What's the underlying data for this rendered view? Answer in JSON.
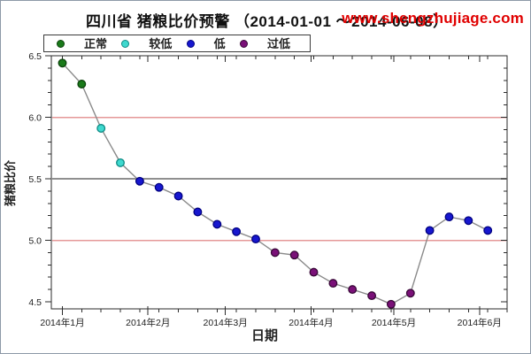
{
  "chart_data": {
    "type": "line",
    "title": "四川省 猪粮比价预警 （2014-01-01 ～2014-06-08）",
    "watermark": "www.shengzhujiage.com",
    "watermark_color": "#e00000",
    "xlabel": "日期",
    "ylabel": "猪粮比价",
    "x_range": [
      "2014-01-01",
      "2014-06-15"
    ],
    "ylim": [
      4.44,
      6.5
    ],
    "grid": false,
    "legend_position": "top",
    "legend": [
      {
        "label": "正常",
        "color": "#1a7a1a",
        "edge": "#0b430b",
        "band": ">=6.0"
      },
      {
        "label": "较低",
        "color": "#3fd9cf",
        "edge": "#0e8a84",
        "band": "5.5-6.0"
      },
      {
        "label": "低",
        "color": "#1717cf",
        "edge": "#000080",
        "band": "5.0-5.5"
      },
      {
        "label": "过低",
        "color": "#7a1078",
        "edge": "#380737",
        "band": "<5.0"
      }
    ],
    "thresholds": [
      {
        "value": 6.0,
        "color": "#e59898",
        "width": 1.5
      },
      {
        "value": 5.5,
        "color": "#8f8f8f",
        "width": 2
      },
      {
        "value": 5.0,
        "color": "#e59898",
        "width": 1.5
      }
    ],
    "y_ticks": [
      {
        "value": 6.5,
        "label": "6.5"
      },
      {
        "value": 6.0,
        "label": "6.0"
      },
      {
        "value": 5.5,
        "label": "5.5"
      },
      {
        "value": 5.0,
        "label": "5.0"
      },
      {
        "value": 4.5,
        "label": "4.5"
      }
    ],
    "y_minor_step": 0.1,
    "x_ticks": [
      {
        "label": "2014年1月",
        "date": "2014-01-05"
      },
      {
        "label": "2014年2月",
        "date": "2014-02-05"
      },
      {
        "label": "2014年3月",
        "date": "2014-03-05"
      },
      {
        "label": "2014年4月",
        "date": "2014-04-05"
      },
      {
        "label": "2014年5月",
        "date": "2014-05-05"
      },
      {
        "label": "2014年6月",
        "date": "2014-06-05"
      }
    ],
    "x_minor_interval_days": 7,
    "series": [
      {
        "name": "猪粮比价",
        "line_color": "#8a8a8a",
        "points": [
          {
            "date": "2014-01-05",
            "value": 6.44,
            "category": "正常"
          },
          {
            "date": "2014-01-12",
            "value": 6.27,
            "category": "正常"
          },
          {
            "date": "2014-01-19",
            "value": 5.91,
            "category": "较低"
          },
          {
            "date": "2014-01-26",
            "value": 5.63,
            "category": "较低"
          },
          {
            "date": "2014-02-02",
            "value": 5.48,
            "category": "低"
          },
          {
            "date": "2014-02-09",
            "value": 5.43,
            "category": "低"
          },
          {
            "date": "2014-02-16",
            "value": 5.36,
            "category": "低"
          },
          {
            "date": "2014-02-23",
            "value": 5.23,
            "category": "低"
          },
          {
            "date": "2014-03-02",
            "value": 5.13,
            "category": "低"
          },
          {
            "date": "2014-03-09",
            "value": 5.07,
            "category": "低"
          },
          {
            "date": "2014-03-16",
            "value": 5.01,
            "category": "低"
          },
          {
            "date": "2014-03-23",
            "value": 4.9,
            "category": "过低"
          },
          {
            "date": "2014-03-30",
            "value": 4.88,
            "category": "过低"
          },
          {
            "date": "2014-04-06",
            "value": 4.74,
            "category": "过低"
          },
          {
            "date": "2014-04-13",
            "value": 4.65,
            "category": "过低"
          },
          {
            "date": "2014-04-20",
            "value": 4.6,
            "category": "过低"
          },
          {
            "date": "2014-04-27",
            "value": 4.55,
            "category": "过低"
          },
          {
            "date": "2014-05-04",
            "value": 4.48,
            "category": "过低"
          },
          {
            "date": "2014-05-11",
            "value": 4.57,
            "category": "过低"
          },
          {
            "date": "2014-05-18",
            "value": 5.08,
            "category": "低"
          },
          {
            "date": "2014-05-25",
            "value": 5.19,
            "category": "低"
          },
          {
            "date": "2014-06-01",
            "value": 5.16,
            "category": "低"
          },
          {
            "date": "2014-06-08",
            "value": 5.08,
            "category": "低"
          }
        ]
      }
    ]
  }
}
